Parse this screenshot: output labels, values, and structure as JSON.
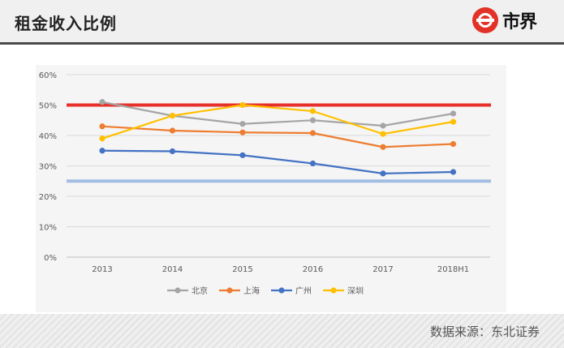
{
  "header": {
    "title": "租金收入比例",
    "logo_text": "市界"
  },
  "footer": {
    "source": "数据来源：东北证券"
  },
  "chart_data": {
    "type": "line",
    "title": "",
    "xlabel": "",
    "ylabel": "",
    "categories": [
      "2013",
      "2014",
      "2015",
      "2016",
      "2017",
      "2018H1"
    ],
    "ylim": [
      0,
      60
    ],
    "yticks": [
      "0%",
      "10%",
      "20%",
      "30%",
      "40%",
      "50%",
      "60%"
    ],
    "ytick_values": [
      0,
      10,
      20,
      30,
      40,
      50,
      60
    ],
    "grid": true,
    "legend_position": "bottom",
    "reference_lines": [
      {
        "value": 50,
        "color": "#e8302a"
      },
      {
        "value": 25,
        "color": "#9ab7e2"
      }
    ],
    "series": [
      {
        "name": "北京",
        "color": "#a5a5a5",
        "values": [
          51,
          46.5,
          43.8,
          45,
          43.2,
          47.2
        ]
      },
      {
        "name": "上海",
        "color": "#ed7d31",
        "values": [
          43,
          41.6,
          41,
          40.8,
          36.2,
          37.2
        ]
      },
      {
        "name": "广州",
        "color": "#4472c4",
        "values": [
          35,
          34.8,
          33.5,
          30.8,
          27.5,
          28
        ]
      },
      {
        "name": "深圳",
        "color": "#ffc000",
        "values": [
          39,
          46.5,
          50,
          48,
          40.5,
          44.5
        ]
      }
    ]
  }
}
